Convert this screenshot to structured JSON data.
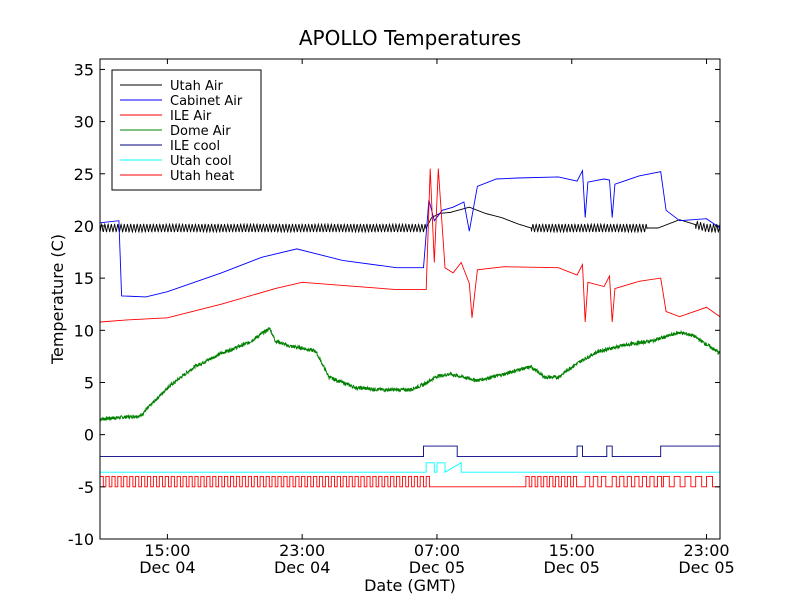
{
  "chart_data": {
    "type": "line",
    "title": "APOLLO Temperatures",
    "xlabel": "Date (GMT)",
    "ylabel": "Temperature (C)",
    "xlim": [
      10.5,
      33.5
    ],
    "ylim": [
      -10,
      36
    ],
    "yticks": [
      -10,
      -5,
      0,
      5,
      10,
      15,
      20,
      25,
      30,
      35
    ],
    "xticks": [
      {
        "t": 13,
        "time": "15:00",
        "date": "Dec 04"
      },
      {
        "t": 18,
        "time": "23:00",
        "date": "Dec 04"
      },
      {
        "t": 23,
        "time": "07:00",
        "date": "Dec 05"
      },
      {
        "t": 28,
        "time": "15:00",
        "date": "Dec 05"
      },
      {
        "t": 33,
        "time": "23:00",
        "date": "Dec 05"
      }
    ],
    "legend_position": "top-left",
    "series": [
      {
        "name": "Utah Air",
        "color": "#000000",
        "x": [
          10.5,
          11.5,
          13,
          15,
          17,
          19,
          21,
          22.6,
          22.8,
          23.1,
          23.5,
          24.2,
          24.8,
          25.4,
          26,
          26.5,
          27.5,
          28.5,
          29.5,
          30.5,
          31.2,
          32,
          33,
          33.5
        ],
        "y": [
          19.8,
          19.8,
          19.8,
          19.8,
          19.8,
          19.8,
          19.8,
          19.8,
          20.8,
          21.2,
          21.3,
          21.8,
          21.2,
          20.8,
          20.2,
          19.8,
          19.8,
          19.8,
          19.8,
          19.8,
          19.8,
          20.6,
          19.8,
          19.8
        ],
        "oscillate": [
          [
            10.5,
            22.6,
            0.4,
            0.12
          ],
          [
            26.5,
            30.8,
            0.4,
            0.12
          ],
          [
            32.6,
            33.5,
            0.4,
            0.12
          ]
        ]
      },
      {
        "name": "Cabinet Air",
        "color": "#0000ff",
        "x": [
          10.5,
          11.2,
          11.3,
          12.2,
          13,
          15,
          16.5,
          17.8,
          19.5,
          21.5,
          22.5,
          22.7,
          22.9,
          23.2,
          23.6,
          24,
          24.2,
          24.5,
          25.2,
          26,
          27.5,
          28.2,
          28.4,
          28.5,
          28.6,
          29.2,
          29.4,
          29.5,
          29.6,
          30.5,
          31.3,
          31.5,
          32,
          33,
          33.5
        ],
        "y": [
          20.3,
          20.5,
          13.3,
          13.2,
          13.7,
          15.5,
          17,
          17.8,
          16.7,
          16,
          16,
          22.5,
          20.5,
          21.5,
          21.8,
          22.3,
          19.5,
          23.8,
          24.5,
          24.6,
          24.7,
          24.3,
          25.3,
          20.8,
          24.2,
          24.5,
          24.4,
          20.8,
          24,
          24.8,
          25.2,
          21.5,
          20.5,
          20.7,
          19.8
        ]
      },
      {
        "name": "ILE Air",
        "color": "#ff0000",
        "x": [
          10.5,
          11.5,
          13,
          15,
          17,
          18,
          19.5,
          21.5,
          22.6,
          22.75,
          22.9,
          23.05,
          23.3,
          23.6,
          23.9,
          24.2,
          24.3,
          24.5,
          25.5,
          27.5,
          28.2,
          28.4,
          28.5,
          28.6,
          29.2,
          29.4,
          29.5,
          29.6,
          30.5,
          31.3,
          31.5,
          32,
          33,
          33.5
        ],
        "y": [
          10.8,
          11,
          11.2,
          12.5,
          14,
          14.6,
          14.3,
          13.9,
          13.9,
          25.5,
          16.5,
          25.5,
          16,
          15.5,
          16.5,
          14.5,
          11.2,
          15.8,
          16.1,
          16,
          15.3,
          16.3,
          10.8,
          14.6,
          14.2,
          15.2,
          10.8,
          14,
          14.7,
          15,
          11.8,
          11.3,
          12.2,
          11.3
        ]
      },
      {
        "name": "Dome Air",
        "color": "#008000",
        "x": [
          10.5,
          11.5,
          12,
          13,
          14,
          15,
          16,
          16.8,
          17,
          17.5,
          18,
          18.5,
          19,
          20,
          21,
          22,
          22.5,
          23,
          23.5,
          24.5,
          25.5,
          26,
          26.5,
          27,
          27.5,
          28,
          28.5,
          29,
          30,
          31,
          32,
          32.5,
          33.5
        ],
        "y": [
          1.5,
          1.7,
          1.8,
          4.5,
          6.5,
          7.8,
          8.8,
          10.2,
          9,
          8.5,
          8.3,
          8,
          5.5,
          4.5,
          4.3,
          4.3,
          4.8,
          5.6,
          5.8,
          5.2,
          5.8,
          6.2,
          6.5,
          5.5,
          5.5,
          6.5,
          7.3,
          8,
          8.6,
          9,
          9.8,
          9.5,
          7.8
        ],
        "noise": 0.35
      },
      {
        "name": "ILE cool",
        "color": "#000080",
        "x": [
          10.5,
          22.5,
          22.5,
          23.75,
          23.75,
          26.5,
          26.5,
          28.2,
          28.2,
          28.4,
          28.4,
          29.3,
          29.3,
          29.5,
          29.5,
          31.3,
          31.3,
          33.5
        ],
        "y": [
          -2.1,
          -2.1,
          -1.1,
          -1.1,
          -2.1,
          -2.1,
          -2.1,
          -2.1,
          -1.1,
          -1.1,
          -2.1,
          -2.1,
          -1.1,
          -1.1,
          -2.1,
          -2.1,
          -1.1,
          -1.1
        ]
      },
      {
        "name": "Utah cool",
        "color": "#00ffff",
        "x": [
          10.5,
          22.6,
          22.6,
          22.9,
          22.9,
          23.0,
          23.0,
          23.3,
          23.3,
          23.9,
          23.9,
          33.5
        ],
        "y": [
          -3.6,
          -3.6,
          -2.7,
          -2.7,
          -3.6,
          -3.6,
          -2.7,
          -2.7,
          -3.6,
          -2.7,
          -3.6,
          -3.6
        ]
      },
      {
        "name": "Utah heat",
        "color": "#ff0000",
        "x": [
          10.5,
          22.6,
          22.6,
          26.3,
          26.3,
          33.5
        ],
        "y": [
          -5,
          -5,
          -5,
          -5,
          -5,
          -5
        ],
        "pulses": [
          [
            10.5,
            22.6,
            -4,
            0.22
          ],
          [
            26.3,
            28.1,
            -4,
            0.22
          ],
          [
            28.5,
            29.3,
            -4,
            0.3
          ],
          [
            29.5,
            31.3,
            -4,
            0.28
          ],
          [
            31.4,
            33.2,
            -4,
            0.4
          ]
        ]
      }
    ]
  }
}
